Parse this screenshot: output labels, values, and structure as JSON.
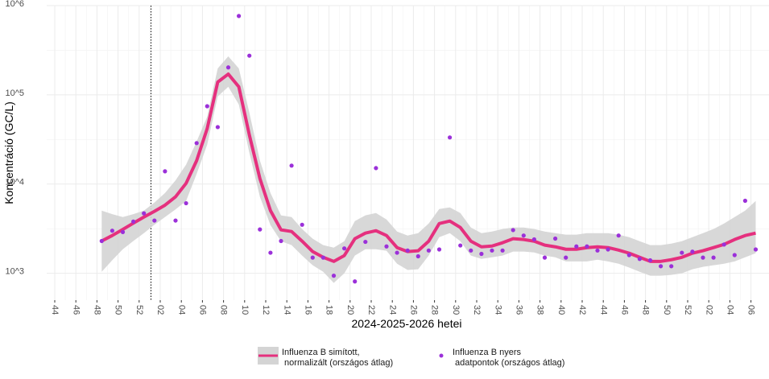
{
  "chart_data": {
    "type": "line",
    "x_label": "2024-2025-2026 hetei",
    "y_label": "Koncentráció (GC/L)",
    "log_y": true,
    "grid": true,
    "ylim": [
      500,
      1000000
    ],
    "yticks": [
      {
        "value": 1000,
        "label": "10^3"
      },
      {
        "value": 10000,
        "label": "10^4"
      },
      {
        "value": 100000,
        "label": "10^5"
      },
      {
        "value": 1000000,
        "label": "10^6"
      }
    ],
    "categories": [
      "44",
      null,
      "46",
      null,
      "48",
      null,
      "50",
      null,
      "52",
      null,
      "02",
      null,
      "04",
      null,
      "06",
      null,
      "08",
      null,
      "10",
      null,
      "12",
      null,
      "14",
      null,
      "16",
      null,
      "18",
      null,
      "20",
      null,
      "22",
      null,
      "24",
      null,
      "26",
      null,
      "28",
      null,
      "30",
      null,
      "32",
      null,
      "34",
      null,
      "36",
      null,
      "38",
      null,
      "40",
      null,
      "42",
      null,
      "44",
      null,
      "46",
      null,
      "48",
      null,
      "50",
      null,
      "52",
      null,
      "02",
      null,
      "04",
      null,
      "06"
    ],
    "series": [
      {
        "name": "Influenza B simított,\n normalizált (országos átlag)",
        "type": "line",
        "color": "#e5307e",
        "band_color": "#d4d4d4",
        "values": [
          null,
          null,
          null,
          null,
          2300,
          2650,
          3100,
          3650,
          4270,
          4950,
          5800,
          7200,
          10200,
          18300,
          41900,
          139000,
          171000,
          123000,
          35400,
          11500,
          5040,
          3070,
          2940,
          2290,
          1750,
          1510,
          1360,
          1580,
          2440,
          2820,
          3000,
          2650,
          1940,
          1750,
          1790,
          2290,
          3610,
          3850,
          3260,
          2290,
          1980,
          2020,
          2200,
          2440,
          2390,
          2290,
          2070,
          1980,
          1860,
          1860,
          1940,
          1980,
          1940,
          1820,
          1680,
          1510,
          1360,
          1360,
          1420,
          1510,
          1680,
          1790,
          1940,
          2110,
          2390,
          2650,
          2820
        ],
        "upper": [
          null,
          null,
          null,
          null,
          5040,
          4600,
          4270,
          4600,
          5040,
          6200,
          7930,
          11000,
          16500,
          30000,
          57000,
          198000,
          270000,
          198000,
          63000,
          18300,
          7930,
          4460,
          4270,
          3130,
          2440,
          2070,
          1940,
          2290,
          3850,
          4460,
          4740,
          4010,
          2940,
          2650,
          2820,
          3610,
          5250,
          5480,
          4740,
          3260,
          2820,
          2940,
          3130,
          3260,
          3260,
          3130,
          2940,
          2820,
          2710,
          2710,
          2820,
          2820,
          2820,
          2710,
          2540,
          2290,
          2070,
          2070,
          2150,
          2290,
          2540,
          2820,
          3130,
          3610,
          4270,
          5040,
          6460
        ],
        "lower": [
          null,
          null,
          null,
          null,
          1040,
          1400,
          1860,
          2300,
          2820,
          3500,
          4270,
          5200,
          6460,
          13000,
          27600,
          96000,
          123000,
          78000,
          22400,
          7200,
          3470,
          2290,
          2070,
          1580,
          1230,
          1040,
          780,
          1000,
          1580,
          1860,
          1860,
          1790,
          1280,
          1090,
          1110,
          1580,
          2540,
          2820,
          2290,
          1580,
          1450,
          1510,
          1580,
          1750,
          1750,
          1710,
          1580,
          1510,
          1360,
          1360,
          1360,
          1420,
          1360,
          1280,
          1160,
          1040,
          940,
          940,
          960,
          1000,
          1110,
          1180,
          1230,
          1280,
          1360,
          1510,
          1680
        ]
      },
      {
        "name": "Influenza B nyers\n adatpontok (országos átlag)",
        "type": "scatter",
        "color": "#9b30d9",
        "values": [
          null,
          null,
          null,
          null,
          2300,
          3000,
          2900,
          3800,
          4700,
          3900,
          13900,
          3900,
          6100,
          28800,
          74600,
          43500,
          203000,
          765000,
          275000,
          3100,
          1700,
          2300,
          16100,
          3500,
          1500,
          1500,
          940,
          1900,
          810,
          2250,
          15100,
          2000,
          1700,
          1800,
          1550,
          1800,
          1850,
          33300,
          2050,
          1800,
          1650,
          1800,
          1800,
          3050,
          2650,
          2400,
          1500,
          2450,
          1500,
          2000,
          2000,
          1800,
          1850,
          2650,
          1600,
          1450,
          1400,
          1200,
          1200,
          1700,
          1750,
          1500,
          1500,
          2100,
          1600,
          6500,
          1850
        ]
      }
    ]
  }
}
